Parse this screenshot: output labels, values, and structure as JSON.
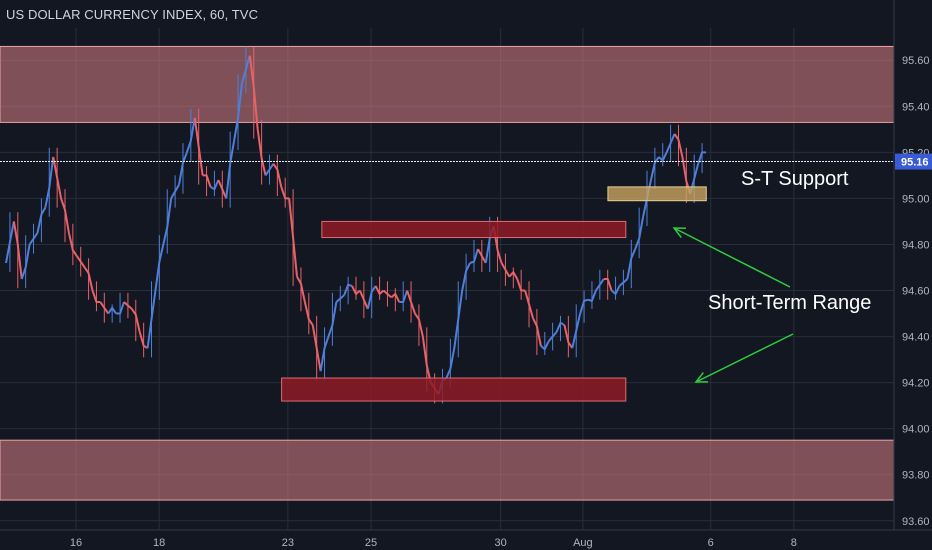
{
  "header": {
    "title": "US DOLLAR CURRENCY INDEX, 60, TVC"
  },
  "colors": {
    "background": "#131722",
    "grid": "#2a2e39",
    "up": "#4f7fd8",
    "down": "#e8626a",
    "resistance_zone": "#d87f83",
    "range_box": "#8e1b25",
    "support_box": "#c9a45e",
    "arrow": "#2ecc40",
    "price_line": "#e6e9f2",
    "price_badge": "#3a5bd6"
  },
  "chart_data": {
    "type": "line",
    "title": "US DOLLAR CURRENCY INDEX, 60, TVC",
    "xlabel": "",
    "ylabel": "",
    "grid": true,
    "ylim": [
      93.56,
      95.74
    ],
    "y_ticks": [
      "95.60",
      "95.40",
      "95.20",
      "95.00",
      "94.80",
      "94.60",
      "94.40",
      "94.20",
      "94.00",
      "93.80",
      "93.60"
    ],
    "x_ticks": [
      "16",
      "18",
      "23",
      "25",
      "30",
      "Aug",
      "6",
      "8"
    ],
    "current_price": "95.16",
    "series": [
      {
        "values": [
          94.72,
          94.9,
          94.65,
          94.8,
          94.85,
          94.96,
          95.18,
          95.0,
          94.85,
          94.75,
          94.7,
          94.6,
          94.55,
          94.5,
          94.5,
          94.55,
          94.52,
          94.42,
          94.35,
          94.6,
          94.8,
          95.0,
          95.06,
          95.2,
          95.35,
          95.1,
          95.05,
          95.08,
          95.0,
          95.25,
          95.5,
          95.62,
          95.3,
          95.1,
          95.15,
          95.05,
          95.0,
          94.66,
          94.55,
          94.45,
          94.25,
          94.4,
          94.55,
          94.58,
          94.62,
          94.6,
          94.52,
          94.62,
          94.6,
          94.57,
          94.55,
          94.6,
          94.5,
          94.4,
          94.2,
          94.15,
          94.22,
          94.35,
          94.6,
          94.72,
          94.78,
          94.72,
          94.88,
          94.72,
          94.66,
          94.65,
          94.6,
          94.48,
          94.36,
          94.38,
          94.42,
          94.45,
          94.35,
          94.5,
          94.56,
          94.6,
          94.65,
          94.6,
          94.62,
          94.65,
          94.78,
          94.92,
          95.08,
          95.18,
          95.2,
          95.28,
          95.18,
          95.02,
          95.15,
          95.2
        ]
      }
    ],
    "zones": [
      {
        "kind": "resistance-zone",
        "y0": 95.33,
        "y1": 95.66
      },
      {
        "kind": "support-zone",
        "y0": 93.69,
        "y1": 93.95
      }
    ],
    "boxes": [
      {
        "kind": "range-top",
        "x0": 0.36,
        "x1": 0.7,
        "y0": 94.83,
        "y1": 94.9
      },
      {
        "kind": "range-bottom",
        "x0": 0.315,
        "x1": 0.7,
        "y0": 94.12,
        "y1": 94.22
      },
      {
        "kind": "st-support",
        "x0": 0.68,
        "x1": 0.79,
        "y0": 94.99,
        "y1": 95.05
      }
    ],
    "annotations": [
      {
        "text": "S-T Support"
      },
      {
        "text": "Short-Term Range"
      }
    ]
  }
}
